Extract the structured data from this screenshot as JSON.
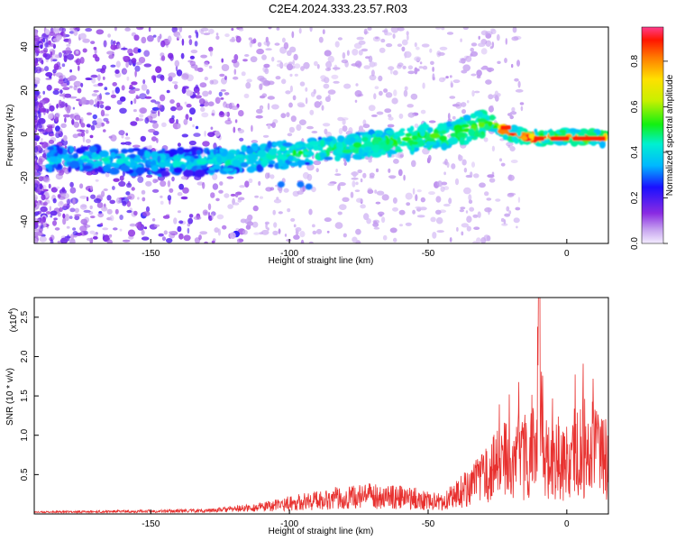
{
  "title": "C2E4.2024.333.23.57.R03",
  "chart_data": [
    {
      "type": "heatmap",
      "xlabel": "Height of straight line (km)",
      "ylabel": "Frequency (Hz)",
      "xlim": [
        -192,
        15
      ],
      "ylim": [
        -50,
        49
      ],
      "xticks": [
        -150,
        -100,
        -50,
        0
      ],
      "xtick_labels": [
        "-150",
        "-100",
        "-50",
        "0"
      ],
      "yticks": [
        -40,
        -20,
        0,
        20,
        40
      ],
      "ytick_labels": [
        "-40",
        "-20",
        "0",
        "20",
        "40"
      ],
      "colorbar": {
        "label": "Normalized spectral amplitude",
        "range": [
          0,
          0.95
        ],
        "ticks": [
          0.0,
          0.2,
          0.4,
          0.6,
          0.8
        ],
        "tick_labels": [
          "0.0",
          "0.2",
          "0.4",
          "0.6",
          "0.8"
        ]
      },
      "ridge": {
        "x": [
          -185,
          -160,
          -140,
          -120,
          -100,
          -80,
          -60,
          -40,
          -28,
          -20,
          -10,
          0,
          14
        ],
        "y": [
          -11,
          -12,
          -13,
          -12,
          -9,
          -6,
          -3,
          0,
          6,
          0,
          -2,
          -1,
          -2
        ]
      }
    },
    {
      "type": "line",
      "xlabel": "Height of straight line (km)",
      "ylabel": "SNR (10 * v/v)",
      "y_multiplier": "(x10",
      "y_multiplier_exp": "4",
      "y_multiplier_close": ")",
      "xlim": [
        -192,
        15
      ],
      "ylim": [
        0,
        2.75
      ],
      "xticks": [
        -150,
        -100,
        -50,
        0
      ],
      "xtick_labels": [
        "-150",
        "-100",
        "-50",
        "0"
      ],
      "yticks": [
        0.5,
        1.0,
        1.5,
        2.0,
        2.5
      ],
      "ytick_labels": [
        "0.5",
        "1.0",
        "1.5",
        "2.0",
        "2.5"
      ],
      "series_color": "#e8312f",
      "envelope": {
        "x": [
          -192,
          -130,
          -110,
          -100,
          -85,
          -70,
          -55,
          -45,
          -38,
          -30,
          -25,
          -20,
          -15,
          -11,
          -10,
          -8,
          -5,
          0,
          5,
          10,
          15
        ],
        "y": [
          0.02,
          0.05,
          0.12,
          0.2,
          0.3,
          0.35,
          0.3,
          0.22,
          0.45,
          0.7,
          1.0,
          1.1,
          1.05,
          1.3,
          2.7,
          1.0,
          1.05,
          1.0,
          1.25,
          1.2,
          1.1
        ]
      }
    }
  ]
}
